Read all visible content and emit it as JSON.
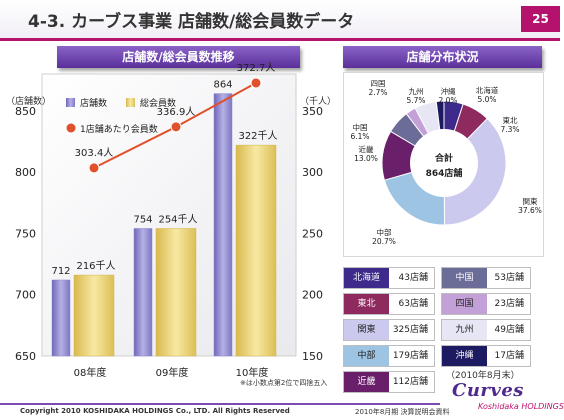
{
  "header": {
    "title": "4-3. カーブス事業 店舗数/総会員数データ",
    "page_number": "25"
  },
  "left_panel": {
    "heading": "店舗数/総会員数推移",
    "unit_left": "（店舗数）",
    "unit_right": "（千人）",
    "note": "※は小数点第2位で四捨五入"
  },
  "chart_data": {
    "type": "bar",
    "categories": [
      "08年度",
      "09年度",
      "10年度"
    ],
    "series": [
      {
        "name": "店舗数",
        "axis": "left",
        "values": [
          712,
          754,
          864
        ],
        "labels": [
          "712",
          "754",
          "864"
        ],
        "color": "#8c86c9"
      },
      {
        "name": "総会員数",
        "axis": "right",
        "values": [
          216,
          254,
          322
        ],
        "labels": [
          "216千人",
          "254千人",
          "322千人"
        ],
        "color": "#e7cc66"
      },
      {
        "name": "1店舗あたり会員数",
        "type": "line",
        "axis": "right",
        "values": [
          303.4,
          336.9,
          372.7
        ],
        "labels": [
          "303.4人",
          "336.9人",
          "372.7人"
        ],
        "color": "#e0502a"
      }
    ],
    "y_left": {
      "ticks": [
        "650",
        "700",
        "750",
        "800",
        "850"
      ],
      "range": [
        650,
        880
      ]
    },
    "y_right": {
      "ticks": [
        "150",
        "200",
        "250",
        "300",
        "350"
      ],
      "range": [
        150,
        380
      ]
    },
    "legend": "top-left"
  },
  "right_panel": {
    "heading": "店舗分布状況",
    "pie": {
      "center_line1": "合計",
      "center_line2": "864店舗",
      "slices": [
        {
          "name": "北海道",
          "pct": "5.0%",
          "value": 5.0,
          "color": "#3d2a8a"
        },
        {
          "name": "東北",
          "pct": "7.3%",
          "value": 7.3,
          "color": "#8e2a5e"
        },
        {
          "name": "関東",
          "pct": "37.6%",
          "value": 37.6,
          "color": "#ccc9ee"
        },
        {
          "name": "中部",
          "pct": "20.7%",
          "value": 20.7,
          "color": "#9ec4e4"
        },
        {
          "name": "近畿",
          "pct": "13.0%",
          "value": 13.0,
          "color": "#6a1f6a"
        },
        {
          "name": "中国",
          "pct": "6.1%",
          "value": 6.1,
          "color": "#6c6c98"
        },
        {
          "name": "四国",
          "pct": "2.7%",
          "value": 2.7,
          "color": "#c3a0d8"
        },
        {
          "name": "九州",
          "pct": "5.7%",
          "value": 5.7,
          "color": "#e6e6f4"
        },
        {
          "name": "沖縄",
          "pct": "2.0%",
          "value": 2.0,
          "color": "#1c1a60"
        }
      ]
    },
    "regions": [
      {
        "name": "北海道",
        "value": "43店舗",
        "color": "#3d2a8a",
        "light": true
      },
      {
        "name": "中国",
        "value": "53店舗",
        "color": "#6c6c98",
        "light": true
      },
      {
        "name": "東北",
        "value": "63店舗",
        "color": "#8e2a5e",
        "light": true
      },
      {
        "name": "四国",
        "value": "23店舗",
        "color": "#c3a0d8",
        "light": false
      },
      {
        "name": "関東",
        "value": "325店舗",
        "color": "#ccc9ee",
        "light": false
      },
      {
        "name": "九州",
        "value": "49店舗",
        "color": "#e6e6f4",
        "light": false
      },
      {
        "name": "中部",
        "value": "179店舗",
        "color": "#9ec4e4",
        "light": false
      },
      {
        "name": "沖縄",
        "value": "17店舗",
        "color": "#1c1a60",
        "light": true
      },
      {
        "name": "近畿",
        "value": "112店舗",
        "color": "#6a1f6a",
        "light": true
      }
    ],
    "as_of": "（2010年8月末）"
  },
  "logo": {
    "brand": "Curves",
    "company": "Koshidaka HOLDINGS"
  },
  "footer": {
    "copyright": "Copyright 2010 KOSHIDAKA HOLDINGS Co., LTD. All Rights Reserved",
    "note": "2010年8月期 決算説明会資料"
  }
}
